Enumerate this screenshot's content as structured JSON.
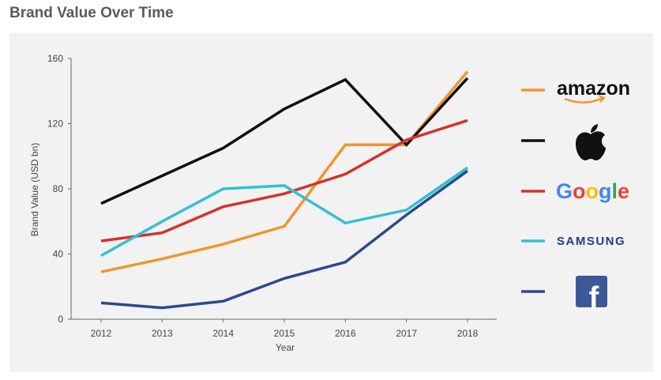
{
  "title": "Brand Value Over Time",
  "chart_data": {
    "type": "line",
    "title": "Brand Value Over Time",
    "xlabel": "Year",
    "ylabel": "Brand Value (USD bn)",
    "x": [
      "2012",
      "2013",
      "2014",
      "2015",
      "2016",
      "2017",
      "2018"
    ],
    "ylim": [
      0,
      160
    ],
    "yticks": [
      "0",
      "40",
      "80",
      "120",
      "160"
    ],
    "grid": false,
    "legend": "right",
    "series": [
      {
        "name": "amazon",
        "color": "#f0962e",
        "values": [
          29,
          37,
          46,
          57,
          107,
          107,
          152
        ]
      },
      {
        "name": "apple",
        "color": "#111111",
        "values": [
          71,
          88,
          105,
          129,
          147,
          107,
          148
        ]
      },
      {
        "name": "Google",
        "color": "#d6312b",
        "values": [
          48,
          53,
          69,
          77,
          89,
          110,
          122
        ]
      },
      {
        "name": "SAMSUNG",
        "color": "#34bfd6",
        "values": [
          39,
          60,
          80,
          82,
          59,
          67,
          93
        ]
      },
      {
        "name": "facebook",
        "color": "#2c4a8c",
        "values": [
          10,
          7,
          11,
          25,
          35,
          64,
          91
        ]
      }
    ]
  },
  "legend_logos": {
    "amazon": {
      "text": "amazon",
      "icon": "amazon-logo"
    },
    "apple": {
      "icon": "apple-logo"
    },
    "google": {
      "text": "Google",
      "icon": "google-logo"
    },
    "samsung": {
      "text": "SAMSUNG",
      "icon": "samsung-logo"
    },
    "facebook": {
      "text": "f",
      "icon": "facebook-logo"
    }
  }
}
